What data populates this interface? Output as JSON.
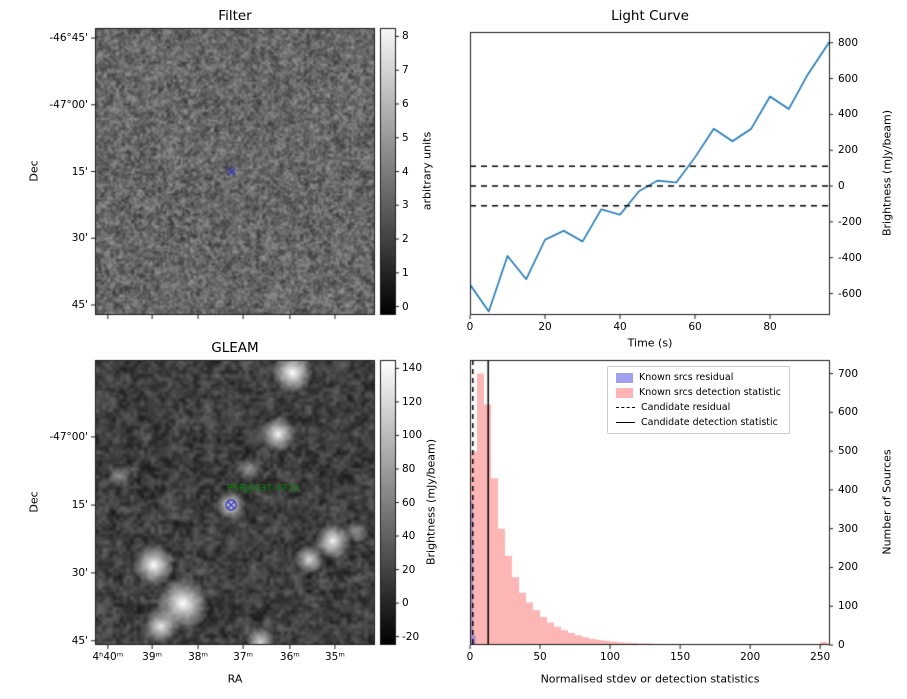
{
  "chart_data": [
    {
      "id": "filter-map",
      "type": "heatmap",
      "title": "Filter",
      "ylabel": "Dec",
      "yticks": [
        "-46°45'",
        "-47°00'",
        "15'",
        "30'",
        "45'"
      ],
      "colorbar_label": "arbitrary units",
      "colorbar_ticks": [
        8,
        7,
        6,
        5,
        4,
        3,
        2,
        1,
        0
      ],
      "colorbar_range": [
        0,
        8
      ],
      "colormap": "gray",
      "marker": {
        "shape": "x",
        "color": "#3a3ac8",
        "x_frac": 0.487,
        "y_frac": 0.5
      }
    },
    {
      "id": "light-curve",
      "type": "line",
      "title": "Light Curve",
      "xlabel": "Time (s)",
      "ylabel": "Brightness (mJy/beam)",
      "line_color": "#1f77b4",
      "x": [
        0,
        5,
        10,
        15,
        20,
        25,
        30,
        35,
        40,
        45,
        50,
        55,
        60,
        65,
        70,
        75,
        80,
        85,
        90,
        96
      ],
      "y": [
        -550,
        -700,
        -390,
        -520,
        -300,
        -250,
        -310,
        -130,
        -160,
        -30,
        30,
        20,
        160,
        320,
        250,
        320,
        500,
        430,
        620,
        810
      ],
      "threshold_lines_y": [
        110,
        0,
        -110
      ],
      "xticks": [
        0,
        20,
        40,
        60,
        80
      ],
      "yticks": [
        800,
        600,
        400,
        200,
        0,
        -200,
        -400,
        -600
      ],
      "xlim": [
        0,
        96
      ],
      "ylim": [
        -720,
        860
      ]
    },
    {
      "id": "gleam-map",
      "type": "heatmap",
      "title": "GLEAM",
      "xlabel": "RA",
      "ylabel": "Dec",
      "xticks": [
        "4ʰ40ᵐ",
        "39ᵐ",
        "38ᵐ",
        "37ᵐ",
        "36ᵐ",
        "35ᵐ"
      ],
      "yticks": [
        "-47°00'",
        "15'",
        "30'",
        "45'"
      ],
      "colorbar_label": "Brightness (mJy/beam)",
      "colorbar_ticks": [
        140,
        120,
        100,
        80,
        60,
        40,
        20,
        0,
        -20
      ],
      "colorbar_range": [
        -25,
        145
      ],
      "colormap": "gray",
      "source_label": "PSRJ0437-4715",
      "source_label_color": "#008000",
      "marker": {
        "shape": "circled-x",
        "color": "#3a3ac8",
        "x_frac": 0.486,
        "y_frac": 0.509
      },
      "bright_sources": [
        {
          "x_frac": 0.705,
          "y_frac": 0.045,
          "sigma": 7,
          "peak": 1.0
        },
        {
          "x_frac": 0.655,
          "y_frac": 0.26,
          "sigma": 6,
          "peak": 0.95
        },
        {
          "x_frac": 0.4,
          "y_frac": 0.16,
          "sigma": 3,
          "peak": 0.3
        },
        {
          "x_frac": 0.486,
          "y_frac": 0.509,
          "sigma": 5,
          "peak": 0.85
        },
        {
          "x_frac": 0.09,
          "y_frac": 0.41,
          "sigma": 4,
          "peak": 0.45
        },
        {
          "x_frac": 0.55,
          "y_frac": 0.38,
          "sigma": 4,
          "peak": 0.4
        },
        {
          "x_frac": 0.85,
          "y_frac": 0.635,
          "sigma": 6,
          "peak": 0.95
        },
        {
          "x_frac": 0.935,
          "y_frac": 0.6,
          "sigma": 4,
          "peak": 0.5
        },
        {
          "x_frac": 0.765,
          "y_frac": 0.7,
          "sigma": 5,
          "peak": 0.8
        },
        {
          "x_frac": 0.21,
          "y_frac": 0.72,
          "sigma": 7,
          "peak": 1.0
        },
        {
          "x_frac": 0.315,
          "y_frac": 0.855,
          "sigma": 9,
          "peak": 1.0
        },
        {
          "x_frac": 0.235,
          "y_frac": 0.935,
          "sigma": 6,
          "peak": 0.9
        },
        {
          "x_frac": 0.59,
          "y_frac": 0.99,
          "sigma": 5,
          "peak": 0.8
        }
      ]
    },
    {
      "id": "stats-histogram",
      "type": "bar",
      "xlabel": "Normalised stdev or detection statistics",
      "ylabel": "Number of Sources",
      "xticks": [
        0,
        50,
        100,
        150,
        200,
        250
      ],
      "yticks": [
        0,
        100,
        200,
        300,
        400,
        500,
        600,
        700
      ],
      "xlim": [
        0,
        257
      ],
      "ylim": [
        0,
        735
      ],
      "series": [
        {
          "name": "Known srcs residual",
          "color": "rgba(100,100,235,0.5)",
          "bin_start": 0,
          "bin_width": 2,
          "counts": [
            370,
            25
          ]
        },
        {
          "name": "Known srcs detection statistic",
          "color": "rgba(250,110,110,0.5)",
          "bin_start": 0,
          "bin_width": 5,
          "counts": [
            500,
            700,
            620,
            430,
            300,
            230,
            175,
            135,
            110,
            90,
            72,
            58,
            47,
            38,
            31,
            25,
            20,
            16,
            13,
            11,
            9,
            7,
            6,
            5,
            4,
            4,
            3,
            0,
            2,
            0,
            2,
            0,
            1,
            0,
            1,
            0,
            0,
            1,
            0,
            0,
            1,
            0,
            0,
            0,
            0,
            0,
            0,
            0,
            0,
            0,
            8
          ]
        }
      ],
      "candidate_residual_x": 2,
      "candidate_detection_statistic_x": 13,
      "legend": [
        {
          "label": "Known srcs residual",
          "swatch": "patch",
          "color": "#a0a0ee"
        },
        {
          "label": "Known srcs detection statistic",
          "swatch": "patch",
          "color": "#ffb4b4"
        },
        {
          "label": "Candidate residual",
          "swatch": "dashed-line",
          "color": "#000000"
        },
        {
          "label": "Candidate detection statistic",
          "swatch": "solid-line",
          "color": "#000000"
        }
      ]
    }
  ]
}
